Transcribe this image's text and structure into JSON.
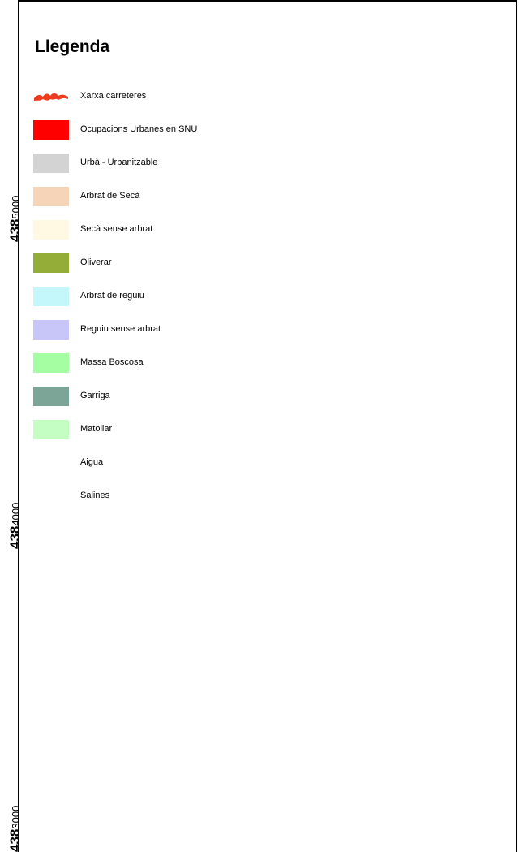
{
  "legend": {
    "title": "Llegenda",
    "items": [
      {
        "label": "Xarxa carreteres",
        "color": "#ee3b1e",
        "icon": "road-line-icon"
      },
      {
        "label": "Ocupacions Urbanes en SNU",
        "color": "#ff0000",
        "icon": "swatch-icon"
      },
      {
        "label": "Urbà - Urbanitzable",
        "color": "#d3d3d3",
        "icon": "swatch-icon"
      },
      {
        "label": "Arbrat de Secà",
        "color": "#f5d4b8",
        "icon": "swatch-icon"
      },
      {
        "label": "Secà sense arbrat",
        "color": "#fff9e3",
        "icon": "swatch-icon"
      },
      {
        "label": "Oliverar",
        "color": "#93ad38",
        "icon": "swatch-icon"
      },
      {
        "label": "Arbrat de reguiu",
        "color": "#c3f7f9",
        "icon": "swatch-icon"
      },
      {
        "label": "Reguiu sense arbrat",
        "color": "#c8c6f8",
        "icon": "swatch-icon"
      },
      {
        "label": "Massa Boscosa",
        "color": "#a6fea2",
        "icon": "swatch-icon"
      },
      {
        "label": "Garriga",
        "color": "#7ca497",
        "icon": "swatch-icon"
      },
      {
        "label": "Matollar",
        "color": "#c5fec3",
        "icon": "swatch-icon"
      },
      {
        "label": "Aigua",
        "color": "#ffffff",
        "icon": "swatch-icon"
      },
      {
        "label": "Salines",
        "color": "#ffffff",
        "icon": "swatch-icon"
      }
    ]
  },
  "coordinates": [
    {
      "major": "438",
      "minor": "5000"
    },
    {
      "major": "438",
      "minor": "4000"
    },
    {
      "major": "438",
      "minor": "3000"
    }
  ]
}
